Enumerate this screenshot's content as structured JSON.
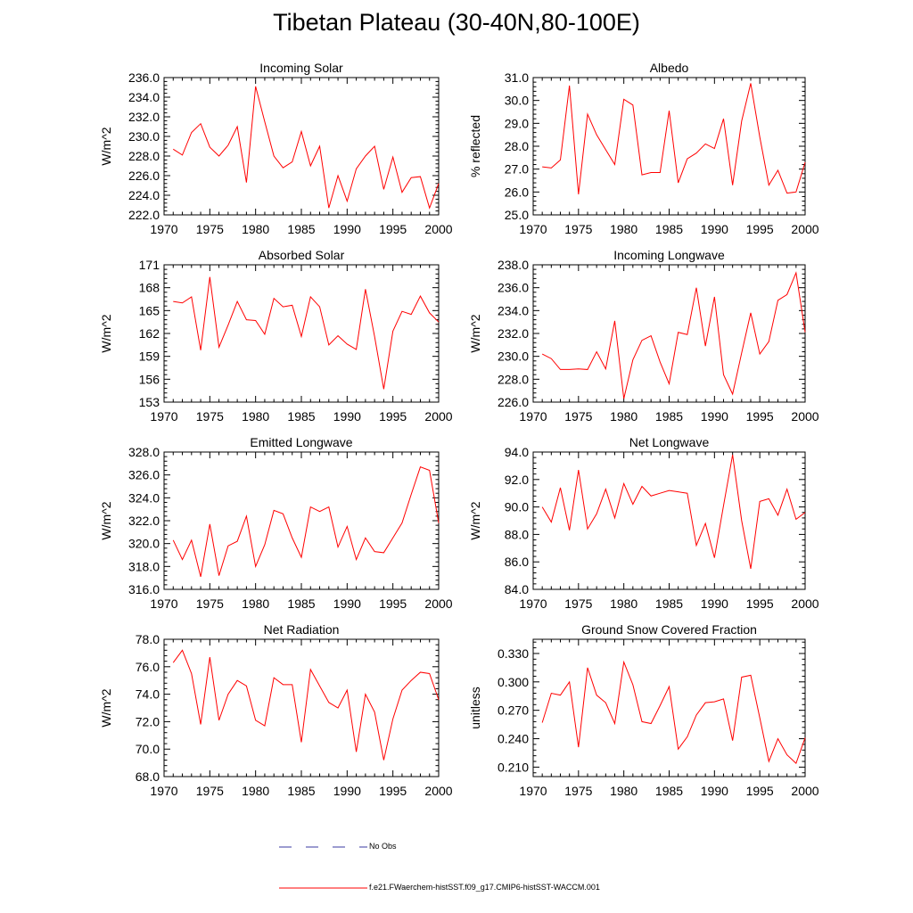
{
  "title": "Tibetan Plateau (30-40N,80-100E)",
  "legend": [
    {
      "label": "No Obs",
      "color": "#3a3aa0",
      "style": "dashed"
    },
    {
      "label": "f.e21.FWaerchem-histSST.f09_g17.CMIP6-histSST-WACCM.001",
      "color": "#ff0000",
      "style": "solid"
    }
  ],
  "chart_data": [
    {
      "type": "line",
      "title": "Incoming Solar",
      "ylabel": "W/m^2",
      "xlim": [
        1970,
        2000
      ],
      "ylim": [
        222.0,
        236.0
      ],
      "xticks": [
        1970,
        1975,
        1980,
        1985,
        1990,
        1995,
        2000
      ],
      "yticks": [
        222.0,
        224.0,
        226.0,
        228.0,
        230.0,
        232.0,
        234.0,
        236.0
      ],
      "ytick_labels": [
        "222.0",
        "224.0",
        "226.0",
        "228.0",
        "230.0",
        "232.0",
        "234.0",
        "236.0"
      ],
      "x": [
        1971,
        1972,
        1973,
        1974,
        1975,
        1976,
        1977,
        1978,
        1979,
        1980,
        1981,
        1982,
        1983,
        1984,
        1985,
        1986,
        1987,
        1988,
        1989,
        1990,
        1991,
        1992,
        1993,
        1994,
        1995,
        1996,
        1997,
        1998,
        1999,
        2000
      ],
      "series": [
        {
          "name": "f.e21.FWaerchem-histSST.f09_g17.CMIP6-histSST-WACCM.001",
          "values": [
            228.7,
            228.1,
            230.4,
            231.3,
            228.9,
            228.0,
            229.1,
            231.0,
            225.3,
            235.1,
            231.5,
            228.0,
            226.8,
            227.4,
            230.5,
            227.0,
            229.0,
            222.7,
            226.0,
            223.4,
            226.7,
            228.0,
            229.0,
            224.6,
            227.9,
            224.3,
            225.8,
            225.9,
            222.7,
            225.2
          ]
        }
      ]
    },
    {
      "type": "line",
      "title": "Albedo",
      "ylabel": "% reflected",
      "xlim": [
        1970,
        2000
      ],
      "ylim": [
        25.0,
        31.0
      ],
      "xticks": [
        1970,
        1975,
        1980,
        1985,
        1990,
        1995,
        2000
      ],
      "yticks": [
        25.0,
        26.0,
        27.0,
        28.0,
        29.0,
        30.0,
        31.0
      ],
      "ytick_labels": [
        "25.0",
        "26.0",
        "27.0",
        "28.0",
        "29.0",
        "30.0",
        "31.0"
      ],
      "x": [
        1971,
        1972,
        1973,
        1974,
        1975,
        1976,
        1977,
        1978,
        1979,
        1980,
        1981,
        1982,
        1983,
        1984,
        1985,
        1986,
        1987,
        1988,
        1989,
        1990,
        1991,
        1992,
        1993,
        1994,
        1995,
        1996,
        1997,
        1998,
        1999,
        2000
      ],
      "series": [
        {
          "name": "f.e21.FWaerchem-histSST.f09_g17.CMIP6-histSST-WACCM.001",
          "values": [
            27.1,
            27.05,
            27.4,
            30.65,
            25.9,
            29.4,
            28.5,
            27.85,
            27.2,
            30.05,
            29.8,
            26.75,
            26.85,
            26.85,
            29.55,
            26.4,
            27.45,
            27.7,
            28.1,
            27.9,
            29.2,
            26.3,
            29.1,
            30.75,
            28.4,
            26.3,
            26.95,
            25.95,
            26.0,
            27.3
          ]
        }
      ]
    },
    {
      "type": "line",
      "title": "Absorbed Solar",
      "ylabel": "W/m^2",
      "xlim": [
        1970,
        2000
      ],
      "ylim": [
        153,
        171
      ],
      "xticks": [
        1970,
        1975,
        1980,
        1985,
        1990,
        1995,
        2000
      ],
      "yticks": [
        153,
        156,
        159,
        162,
        165,
        168,
        171
      ],
      "ytick_labels": [
        "153",
        "156",
        "159",
        "162",
        "165",
        "168",
        "171"
      ],
      "x": [
        1971,
        1972,
        1973,
        1974,
        1975,
        1976,
        1977,
        1978,
        1979,
        1980,
        1981,
        1982,
        1983,
        1984,
        1985,
        1986,
        1987,
        1988,
        1989,
        1990,
        1991,
        1992,
        1993,
        1994,
        1995,
        1996,
        1997,
        1998,
        1999,
        2000
      ],
      "series": [
        {
          "name": "f.e21.FWaerchem-histSST.f09_g17.CMIP6-histSST-WACCM.001",
          "values": [
            166.2,
            166.0,
            166.8,
            159.8,
            169.4,
            160.2,
            163.1,
            166.2,
            163.8,
            163.7,
            161.9,
            166.6,
            165.5,
            165.7,
            161.6,
            166.8,
            165.5,
            160.5,
            161.7,
            160.6,
            159.9,
            167.8,
            161.6,
            154.7,
            162.3,
            164.9,
            164.5,
            166.9,
            164.7,
            163.5
          ]
        }
      ]
    },
    {
      "type": "line",
      "title": "Incoming Longwave",
      "ylabel": "W/m^2",
      "xlim": [
        1970,
        2000
      ],
      "ylim": [
        226.0,
        238.0
      ],
      "xticks": [
        1970,
        1975,
        1980,
        1985,
        1990,
        1995,
        2000
      ],
      "yticks": [
        226.0,
        228.0,
        230.0,
        232.0,
        234.0,
        236.0,
        238.0
      ],
      "ytick_labels": [
        "226.0",
        "228.0",
        "230.0",
        "232.0",
        "234.0",
        "236.0",
        "238.0"
      ],
      "x": [
        1971,
        1972,
        1973,
        1974,
        1975,
        1976,
        1977,
        1978,
        1979,
        1980,
        1981,
        1982,
        1983,
        1984,
        1985,
        1986,
        1987,
        1988,
        1989,
        1990,
        1991,
        1992,
        1993,
        1994,
        1995,
        1996,
        1997,
        1998,
        1999,
        2000
      ],
      "series": [
        {
          "name": "f.e21.FWaerchem-histSST.f09_g17.CMIP6-histSST-WACCM.001",
          "values": [
            230.2,
            229.8,
            228.85,
            228.85,
            228.9,
            228.85,
            230.4,
            228.9,
            233.1,
            226.3,
            229.7,
            231.4,
            231.8,
            229.5,
            227.6,
            232.1,
            231.9,
            236.0,
            230.9,
            235.2,
            228.4,
            226.7,
            230.3,
            233.8,
            230.2,
            231.3,
            234.9,
            235.4,
            237.3,
            232.1
          ]
        }
      ]
    },
    {
      "type": "line",
      "title": "Emitted Longwave",
      "ylabel": "W/m^2",
      "xlim": [
        1970,
        2000
      ],
      "ylim": [
        316.0,
        328.0
      ],
      "xticks": [
        1970,
        1975,
        1980,
        1985,
        1990,
        1995,
        2000
      ],
      "yticks": [
        316.0,
        318.0,
        320.0,
        322.0,
        324.0,
        326.0,
        328.0
      ],
      "ytick_labels": [
        "316.0",
        "318.0",
        "320.0",
        "322.0",
        "324.0",
        "326.0",
        "328.0"
      ],
      "x": [
        1971,
        1972,
        1973,
        1974,
        1975,
        1976,
        1977,
        1978,
        1979,
        1980,
        1981,
        1982,
        1983,
        1984,
        1985,
        1986,
        1987,
        1988,
        1989,
        1990,
        1991,
        1992,
        1993,
        1994,
        1995,
        1996,
        1997,
        1998,
        1999,
        2000
      ],
      "series": [
        {
          "name": "f.e21.FWaerchem-histSST.f09_g17.CMIP6-histSST-WACCM.001",
          "values": [
            320.3,
            318.6,
            320.3,
            317.1,
            321.7,
            317.2,
            319.8,
            320.2,
            322.4,
            318.0,
            319.9,
            322.9,
            322.6,
            320.5,
            318.8,
            323.2,
            322.8,
            323.2,
            319.7,
            321.5,
            318.6,
            320.5,
            319.3,
            319.2,
            320.5,
            321.8,
            324.3,
            326.7,
            326.4,
            321.8
          ]
        }
      ]
    },
    {
      "type": "line",
      "title": "Net Longwave",
      "ylabel": "W/m^2",
      "xlim": [
        1970,
        2000
      ],
      "ylim": [
        84.0,
        94.0
      ],
      "xticks": [
        1970,
        1975,
        1980,
        1985,
        1990,
        1995,
        2000
      ],
      "yticks": [
        84.0,
        86.0,
        88.0,
        90.0,
        92.0,
        94.0
      ],
      "ytick_labels": [
        "84.0",
        "86.0",
        "88.0",
        "90.0",
        "92.0",
        "94.0"
      ],
      "x": [
        1971,
        1972,
        1973,
        1974,
        1975,
        1976,
        1977,
        1978,
        1979,
        1980,
        1981,
        1982,
        1983,
        1984,
        1985,
        1986,
        1987,
        1988,
        1989,
        1990,
        1991,
        1992,
        1993,
        1994,
        1995,
        1996,
        1997,
        1998,
        1999,
        2000
      ],
      "series": [
        {
          "name": "f.e21.FWaerchem-histSST.f09_g17.CMIP6-histSST-WACCM.001",
          "values": [
            90.0,
            88.9,
            91.4,
            88.3,
            92.7,
            88.4,
            89.5,
            91.3,
            89.2,
            91.7,
            90.2,
            91.5,
            90.8,
            91.0,
            91.2,
            91.1,
            91.0,
            87.2,
            88.8,
            86.3,
            90.1,
            93.8,
            89.0,
            85.5,
            90.4,
            90.6,
            89.4,
            91.3,
            89.1,
            89.6
          ]
        }
      ]
    },
    {
      "type": "line",
      "title": "Net Radiation",
      "ylabel": "W/m^2",
      "xlim": [
        1970,
        2000
      ],
      "ylim": [
        68.0,
        78.0
      ],
      "xticks": [
        1970,
        1975,
        1980,
        1985,
        1990,
        1995,
        2000
      ],
      "yticks": [
        68.0,
        70.0,
        72.0,
        74.0,
        76.0,
        78.0
      ],
      "ytick_labels": [
        "68.0",
        "70.0",
        "72.0",
        "74.0",
        "76.0",
        "78.0"
      ],
      "x": [
        1971,
        1972,
        1973,
        1974,
        1975,
        1976,
        1977,
        1978,
        1979,
        1980,
        1981,
        1982,
        1983,
        1984,
        1985,
        1986,
        1987,
        1988,
        1989,
        1990,
        1991,
        1992,
        1993,
        1994,
        1995,
        1996,
        1997,
        1998,
        1999,
        2000
      ],
      "series": [
        {
          "name": "f.e21.FWaerchem-histSST.f09_g17.CMIP6-histSST-WACCM.001",
          "values": [
            76.3,
            77.2,
            75.5,
            71.8,
            76.7,
            72.1,
            74.0,
            75.0,
            74.6,
            72.1,
            71.7,
            75.2,
            74.7,
            74.7,
            70.5,
            75.8,
            74.6,
            73.4,
            73.0,
            74.3,
            69.8,
            74.0,
            72.7,
            69.2,
            72.2,
            74.3,
            75.0,
            75.6,
            75.5,
            73.6
          ]
        }
      ]
    },
    {
      "type": "line",
      "title": "Ground Snow Covered Fraction",
      "ylabel": "unitless",
      "xlim": [
        1970,
        2000
      ],
      "ylim": [
        0.2,
        0.345
      ],
      "xticks": [
        1970,
        1975,
        1980,
        1985,
        1990,
        1995,
        2000
      ],
      "yticks": [
        0.21,
        0.24,
        0.27,
        0.3,
        0.33
      ],
      "ytick_labels": [
        "0.210",
        "0.240",
        "0.270",
        "0.300",
        "0.330"
      ],
      "x": [
        1971,
        1972,
        1973,
        1974,
        1975,
        1976,
        1977,
        1978,
        1979,
        1980,
        1981,
        1982,
        1983,
        1984,
        1985,
        1986,
        1987,
        1988,
        1989,
        1990,
        1991,
        1992,
        1993,
        1994,
        1995,
        1996,
        1997,
        1998,
        1999,
        2000
      ],
      "series": [
        {
          "name": "f.e21.FWaerchem-histSST.f09_g17.CMIP6-histSST-WACCM.001",
          "values": [
            0.257,
            0.288,
            0.286,
            0.3,
            0.231,
            0.315,
            0.286,
            0.278,
            0.256,
            0.321,
            0.297,
            0.258,
            0.256,
            0.275,
            0.295,
            0.229,
            0.242,
            0.265,
            0.278,
            0.279,
            0.282,
            0.238,
            0.305,
            0.307,
            0.262,
            0.216,
            0.24,
            0.223,
            0.214,
            0.241
          ]
        }
      ]
    }
  ]
}
